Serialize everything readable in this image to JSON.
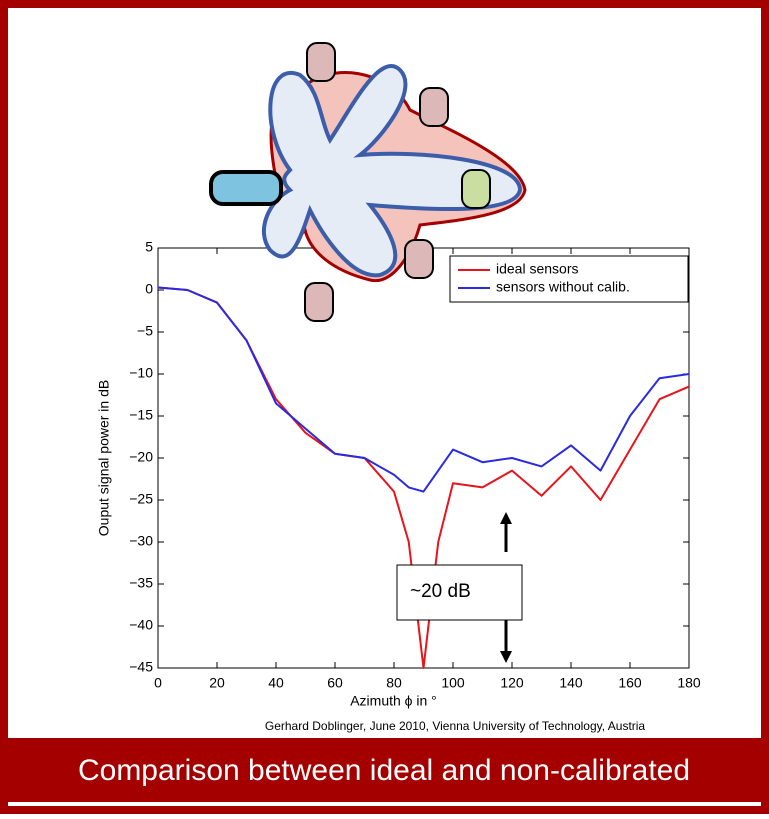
{
  "chart_data": {
    "type": "line",
    "x": [
      0,
      10,
      20,
      30,
      40,
      50,
      60,
      70,
      80,
      85,
      90,
      95,
      100,
      110,
      120,
      130,
      140,
      150,
      160,
      170,
      180
    ],
    "series": [
      {
        "name": "ideal sensors",
        "color": "#e8141c",
        "values": [
          0.3,
          0,
          -1.5,
          -6,
          -13,
          -17,
          -19.5,
          -20,
          -24,
          -30,
          -45,
          -30,
          -23,
          -23.5,
          -21.5,
          -24.5,
          -21,
          -25,
          -19,
          -13,
          -11.5
        ]
      },
      {
        "name": "sensors without calib.",
        "color": "#2a2ae0",
        "values": [
          0.3,
          0,
          -1.5,
          -6,
          -13.5,
          -16.5,
          -19.5,
          -20,
          -22,
          -23.5,
          -24,
          -21.5,
          -19,
          -20.5,
          -20,
          -21,
          -18.5,
          -21.5,
          -15,
          -10.5,
          -10
        ]
      }
    ],
    "xlim": [
      0,
      180
    ],
    "xticks": [
      0,
      20,
      40,
      60,
      80,
      100,
      120,
      140,
      160,
      180
    ],
    "ylim": [
      -45,
      5
    ],
    "yticks": [
      5,
      0,
      {
        "value": -5,
        "label": "−5"
      },
      {
        "value": -10,
        "label": "−10"
      },
      {
        "value": -15,
        "label": "−15"
      },
      {
        "value": -20,
        "label": "−20"
      },
      {
        "value": -25,
        "label": "−25"
      },
      {
        "value": -30,
        "label": "−30"
      },
      {
        "value": -35,
        "label": "−35"
      },
      {
        "value": -40,
        "label": "−40"
      },
      {
        "value": -45,
        "label": "−45"
      }
    ],
    "xlabel": "Azimuth ϕ in °",
    "ylabel": "Ouput signal power in dB",
    "annotation": "~20 dB",
    "credit": "Gerhard Doblinger, June 2010, Vienna University of Technology, Austria",
    "caption": "Comparison between ideal and non-calibrated"
  }
}
